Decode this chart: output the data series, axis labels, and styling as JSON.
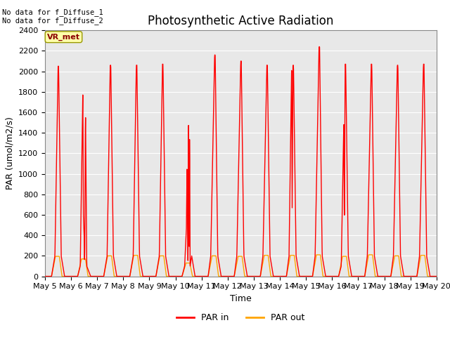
{
  "title": "Photosynthetic Active Radiation",
  "xlabel": "Time",
  "ylabel": "PAR (umol/m2/s)",
  "ylim": [
    0,
    2400
  ],
  "yticks": [
    0,
    200,
    400,
    600,
    800,
    1000,
    1200,
    1400,
    1600,
    1800,
    2000,
    2200,
    2400
  ],
  "x_start_day": 5,
  "x_end_day": 20,
  "par_in_color": "#FF0000",
  "par_out_color": "#FFA500",
  "background_color": "#E8E8E8",
  "annotation_text": "No data for f_Diffuse_1\nNo data for f_Diffuse_2",
  "label_box_text": "VR_met",
  "label_box_facecolor": "#FFFFAA",
  "label_box_edgecolor": "#999900",
  "title_fontsize": 12,
  "axis_fontsize": 9,
  "tick_fontsize": 8,
  "legend_labels": [
    "PAR in",
    "PAR out"
  ],
  "x_tick_labels": [
    "May 5",
    "May 6",
    "May 7",
    "May 8",
    "May 9",
    "May 10",
    "May 11",
    "May 12",
    "May 13",
    "May 14",
    "May 15",
    "May 16",
    "May 17",
    "May 18",
    "May 19",
    "May 20"
  ],
  "x_tick_positions": [
    5,
    6,
    7,
    8,
    9,
    10,
    11,
    12,
    13,
    14,
    15,
    16,
    17,
    18,
    19,
    20
  ],
  "par_in_data": [
    [
      5.25,
      0
    ],
    [
      5.38,
      200
    ],
    [
      5.5,
      2050
    ],
    [
      5.52,
      2050
    ],
    [
      5.62,
      200
    ],
    [
      5.75,
      0
    ],
    [
      6.25,
      0
    ],
    [
      6.35,
      100
    ],
    [
      6.45,
      1800
    ],
    [
      6.47,
      600
    ],
    [
      6.5,
      400
    ],
    [
      6.52,
      100
    ],
    [
      6.55,
      1650
    ],
    [
      6.6,
      100
    ],
    [
      6.75,
      0
    ],
    [
      7.25,
      0
    ],
    [
      7.38,
      200
    ],
    [
      7.5,
      2060
    ],
    [
      7.52,
      2060
    ],
    [
      7.62,
      200
    ],
    [
      7.75,
      0
    ],
    [
      8.25,
      0
    ],
    [
      8.38,
      200
    ],
    [
      8.5,
      2060
    ],
    [
      8.52,
      2060
    ],
    [
      8.62,
      200
    ],
    [
      8.75,
      0
    ],
    [
      9.25,
      0
    ],
    [
      9.38,
      200
    ],
    [
      9.5,
      2070
    ],
    [
      9.52,
      2070
    ],
    [
      9.62,
      200
    ],
    [
      9.75,
      0
    ],
    [
      10.25,
      0
    ],
    [
      10.35,
      100
    ],
    [
      10.42,
      480
    ],
    [
      10.44,
      1050
    ],
    [
      10.46,
      580
    ],
    [
      10.48,
      100
    ],
    [
      10.5,
      1490
    ],
    [
      10.52,
      100
    ],
    [
      10.54,
      1490
    ],
    [
      10.56,
      100
    ],
    [
      10.62,
      200
    ],
    [
      10.75,
      0
    ],
    [
      11.25,
      0
    ],
    [
      11.35,
      200
    ],
    [
      11.5,
      2160
    ],
    [
      11.52,
      2160
    ],
    [
      11.62,
      200
    ],
    [
      11.75,
      0
    ],
    [
      12.25,
      0
    ],
    [
      12.35,
      200
    ],
    [
      12.5,
      2100
    ],
    [
      12.52,
      2100
    ],
    [
      12.62,
      200
    ],
    [
      12.75,
      0
    ],
    [
      13.25,
      0
    ],
    [
      13.35,
      200
    ],
    [
      13.5,
      2060
    ],
    [
      13.52,
      2060
    ],
    [
      13.62,
      200
    ],
    [
      13.75,
      0
    ],
    [
      14.25,
      0
    ],
    [
      14.35,
      200
    ],
    [
      14.45,
      2060
    ],
    [
      14.47,
      650
    ],
    [
      14.5,
      2060
    ],
    [
      14.52,
      2060
    ],
    [
      14.62,
      200
    ],
    [
      14.75,
      0
    ],
    [
      15.25,
      0
    ],
    [
      15.35,
      200
    ],
    [
      15.5,
      2240
    ],
    [
      15.52,
      2240
    ],
    [
      15.62,
      200
    ],
    [
      15.75,
      0
    ],
    [
      16.25,
      0
    ],
    [
      16.35,
      100
    ],
    [
      16.45,
      1520
    ],
    [
      16.47,
      420
    ],
    [
      16.5,
      2070
    ],
    [
      16.52,
      2070
    ],
    [
      16.62,
      200
    ],
    [
      16.75,
      0
    ],
    [
      17.25,
      0
    ],
    [
      17.35,
      200
    ],
    [
      17.5,
      2070
    ],
    [
      17.52,
      2070
    ],
    [
      17.62,
      200
    ],
    [
      17.75,
      0
    ],
    [
      18.25,
      0
    ],
    [
      18.35,
      200
    ],
    [
      18.5,
      2060
    ],
    [
      18.52,
      2060
    ],
    [
      18.62,
      200
    ],
    [
      18.75,
      0
    ],
    [
      19.25,
      0
    ],
    [
      19.35,
      200
    ],
    [
      19.5,
      2070
    ],
    [
      19.52,
      2070
    ],
    [
      19.6,
      550
    ],
    [
      19.62,
      200
    ],
    [
      19.75,
      0
    ]
  ],
  "par_out_data": [
    [
      5.25,
      0
    ],
    [
      5.4,
      195
    ],
    [
      5.55,
      195
    ],
    [
      5.65,
      0
    ],
    [
      6.25,
      0
    ],
    [
      6.4,
      170
    ],
    [
      6.55,
      170
    ],
    [
      6.65,
      0
    ],
    [
      7.25,
      0
    ],
    [
      7.4,
      200
    ],
    [
      7.55,
      200
    ],
    [
      7.65,
      0
    ],
    [
      8.25,
      0
    ],
    [
      8.4,
      205
    ],
    [
      8.55,
      205
    ],
    [
      8.65,
      0
    ],
    [
      9.25,
      0
    ],
    [
      9.4,
      200
    ],
    [
      9.55,
      200
    ],
    [
      9.65,
      0
    ],
    [
      10.25,
      0
    ],
    [
      10.4,
      130
    ],
    [
      10.55,
      130
    ],
    [
      10.65,
      0
    ],
    [
      11.25,
      0
    ],
    [
      11.4,
      200
    ],
    [
      11.55,
      200
    ],
    [
      11.65,
      0
    ],
    [
      12.25,
      0
    ],
    [
      12.4,
      195
    ],
    [
      12.55,
      195
    ],
    [
      12.65,
      0
    ],
    [
      13.25,
      0
    ],
    [
      13.4,
      205
    ],
    [
      13.55,
      205
    ],
    [
      13.65,
      0
    ],
    [
      14.25,
      0
    ],
    [
      14.4,
      205
    ],
    [
      14.55,
      205
    ],
    [
      14.65,
      0
    ],
    [
      15.25,
      0
    ],
    [
      15.4,
      210
    ],
    [
      15.55,
      210
    ],
    [
      15.65,
      0
    ],
    [
      16.25,
      0
    ],
    [
      16.4,
      195
    ],
    [
      16.55,
      195
    ],
    [
      16.65,
      0
    ],
    [
      17.25,
      0
    ],
    [
      17.4,
      210
    ],
    [
      17.55,
      210
    ],
    [
      17.65,
      0
    ],
    [
      18.25,
      0
    ],
    [
      18.4,
      200
    ],
    [
      18.55,
      200
    ],
    [
      18.65,
      0
    ],
    [
      19.25,
      0
    ],
    [
      19.4,
      205
    ],
    [
      19.55,
      205
    ],
    [
      19.65,
      0
    ]
  ]
}
